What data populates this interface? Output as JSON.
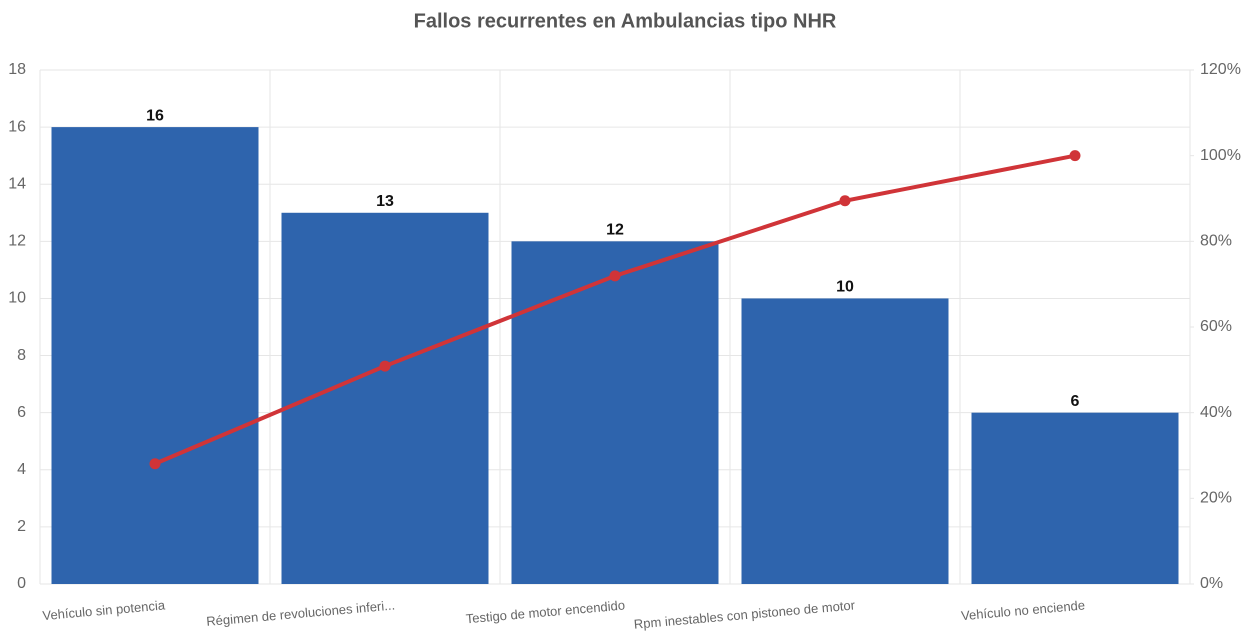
{
  "chart_data": {
    "type": "pareto",
    "title": "Fallos recurrentes en Ambulancias tipo NHR",
    "categories": [
      "Vehículo sin potencia",
      "Régimen de revoluciones inferi...",
      "Testigo de motor encendido",
      "Rpm inestables con pistoneo de motor",
      "Vehículo no enciende"
    ],
    "series": [
      {
        "type": "bar",
        "color": "#2e64ad",
        "values": [
          16,
          13,
          12,
          10,
          6
        ]
      },
      {
        "type": "line",
        "axis": "y2",
        "color": "#d03438",
        "values": [
          28.07,
          50.88,
          71.93,
          89.47,
          100
        ]
      }
    ],
    "ylim": [
      0,
      18
    ],
    "yticks": [
      0,
      2,
      4,
      6,
      8,
      10,
      12,
      14,
      16,
      18
    ],
    "y2lim": [
      0,
      120
    ],
    "y2ticks": [
      {
        "value": 0,
        "label": "0%"
      },
      {
        "value": 20,
        "label": "20%"
      },
      {
        "value": 40,
        "label": "40%"
      },
      {
        "value": 60,
        "label": "60%"
      },
      {
        "value": 80,
        "label": "80%"
      },
      {
        "value": 100,
        "label": "100%"
      },
      {
        "value": 120,
        "label": "120%"
      }
    ],
    "grid": true
  }
}
